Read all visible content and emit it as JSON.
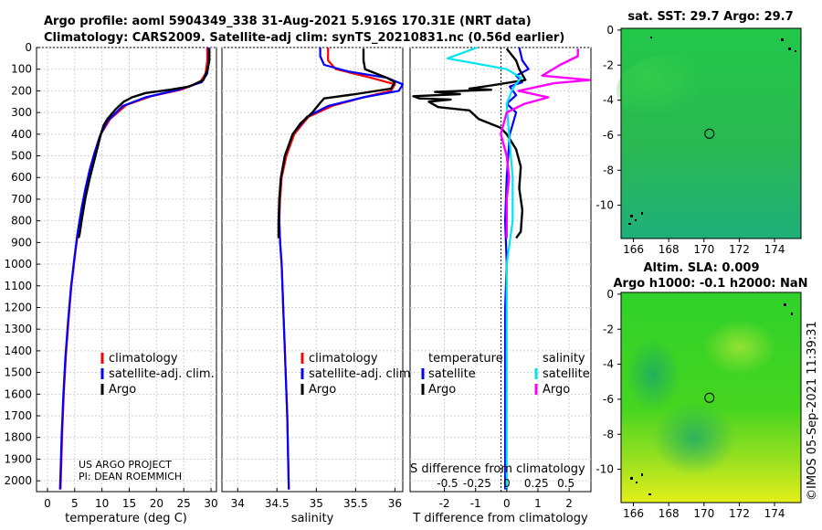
{
  "titles": {
    "line1": "Argo profile: aoml 5904349_338 31-Aug-2021 5.916S 170.31E (NRT data)",
    "line2": "Climatology: CARS2009. Satellite-adj clim: synTS_20210831.nc (0.56d earlier)"
  },
  "credit": {
    "project": "US ARGO PROJECT",
    "pi": "PI: DEAN ROEMMICH",
    "imos": "©IMOS 05-Sep-2021 11:39:31"
  },
  "colors": {
    "argo": "#000000",
    "climatology": "#ff0000",
    "satellite": "#0000ff",
    "sal_satellite": "#00e5ee",
    "sal_argo": "#ff00ff"
  },
  "chart_data": [
    {
      "type": "line",
      "name": "temperature",
      "xlabel": "temperature (deg C)",
      "ylabel": "",
      "xlim": [
        -2,
        31
      ],
      "ylim": [
        2050,
        0
      ],
      "xticks": [
        0,
        5,
        10,
        15,
        20,
        25,
        30
      ],
      "yticks": [
        0,
        100,
        200,
        300,
        400,
        500,
        600,
        700,
        800,
        900,
        1000,
        1100,
        1200,
        1300,
        1400,
        1500,
        1600,
        1700,
        1800,
        1900,
        2000
      ],
      "legend": [
        "climatology",
        "satellite-adj. clim.",
        "Argo"
      ],
      "series": [
        {
          "name": "climatology",
          "points": [
            [
              29.3,
              0
            ],
            [
              29.3,
              60
            ],
            [
              29.0,
              120
            ],
            [
              28.0,
              160
            ],
            [
              24.5,
              195
            ],
            [
              19.0,
              225
            ],
            [
              14.5,
              265
            ],
            [
              11.5,
              330
            ],
            [
              9.8,
              400
            ],
            [
              8.7,
              480
            ],
            [
              7.8,
              560
            ],
            [
              7.0,
              650
            ],
            [
              6.3,
              740
            ],
            [
              5.6,
              850
            ],
            [
              5.0,
              970
            ],
            [
              4.4,
              1100
            ],
            [
              3.9,
              1250
            ],
            [
              3.4,
              1420
            ],
            [
              3.0,
              1600
            ],
            [
              2.7,
              1780
            ],
            [
              2.5,
              1950
            ],
            [
              2.4,
              2040
            ]
          ]
        },
        {
          "name": "satellite-adj. clim.",
          "points": [
            [
              29.6,
              0
            ],
            [
              29.6,
              60
            ],
            [
              29.3,
              120
            ],
            [
              28.3,
              160
            ],
            [
              24.0,
              195
            ],
            [
              18.0,
              230
            ],
            [
              13.8,
              270
            ],
            [
              11.0,
              340
            ],
            [
              9.6,
              410
            ],
            [
              8.6,
              490
            ],
            [
              7.7,
              570
            ],
            [
              6.9,
              660
            ],
            [
              6.2,
              750
            ],
            [
              5.5,
              860
            ],
            [
              4.9,
              980
            ],
            [
              4.3,
              1110
            ],
            [
              3.8,
              1260
            ],
            [
              3.3,
              1430
            ],
            [
              2.9,
              1610
            ],
            [
              2.6,
              1790
            ],
            [
              2.4,
              1960
            ],
            [
              2.3,
              2040
            ]
          ]
        },
        {
          "name": "Argo",
          "points": [
            [
              29.7,
              5
            ],
            [
              29.7,
              60
            ],
            [
              29.4,
              100
            ],
            [
              28.6,
              150
            ],
            [
              26.0,
              180
            ],
            [
              22.5,
              195
            ],
            [
              18.0,
              210
            ],
            [
              15.5,
              230
            ],
            [
              14.0,
              250
            ],
            [
              12.5,
              285
            ],
            [
              11.0,
              330
            ],
            [
              10.3,
              360
            ],
            [
              9.8,
              400
            ],
            [
              9.3,
              450
            ],
            [
              8.6,
              520
            ],
            [
              7.8,
              600
            ],
            [
              7.0,
              690
            ],
            [
              6.4,
              780
            ],
            [
              5.9,
              860
            ],
            [
              5.7,
              880
            ]
          ]
        }
      ]
    },
    {
      "type": "line",
      "name": "salinity",
      "xlabel": "salinity",
      "xlim": [
        33.8,
        36.1
      ],
      "ylim": [
        2050,
        0
      ],
      "xticks": [
        34,
        34.5,
        35,
        35.5,
        36
      ],
      "legend": [
        "climatology",
        "satellite-adj. clim.",
        "Argo"
      ],
      "series": [
        {
          "name": "climatology",
          "points": [
            [
              35.15,
              0
            ],
            [
              35.15,
              60
            ],
            [
              35.25,
              100
            ],
            [
              35.7,
              140
            ],
            [
              36.0,
              170
            ],
            [
              35.95,
              200
            ],
            [
              35.6,
              230
            ],
            [
              35.2,
              270
            ],
            [
              34.9,
              320
            ],
            [
              34.72,
              400
            ],
            [
              34.62,
              500
            ],
            [
              34.56,
              600
            ],
            [
              34.54,
              700
            ],
            [
              34.53,
              800
            ],
            [
              34.54,
              900
            ],
            [
              34.56,
              1000
            ],
            [
              34.58,
              1200
            ],
            [
              34.6,
              1400
            ],
            [
              34.63,
              1700
            ],
            [
              34.65,
              2040
            ]
          ]
        },
        {
          "name": "satellite-adj. clim.",
          "points": [
            [
              35.05,
              0
            ],
            [
              35.05,
              40
            ],
            [
              35.1,
              80
            ],
            [
              35.4,
              110
            ],
            [
              35.9,
              140
            ],
            [
              36.1,
              170
            ],
            [
              36.05,
              200
            ],
            [
              35.6,
              230
            ],
            [
              35.15,
              270
            ],
            [
              34.88,
              320
            ],
            [
              34.7,
              400
            ],
            [
              34.6,
              500
            ],
            [
              34.55,
              600
            ],
            [
              34.53,
              700
            ],
            [
              34.53,
              800
            ],
            [
              34.54,
              900
            ],
            [
              34.56,
              1000
            ],
            [
              34.58,
              1200
            ],
            [
              34.6,
              1400
            ],
            [
              34.63,
              1700
            ],
            [
              34.65,
              2040
            ]
          ]
        },
        {
          "name": "Argo",
          "points": [
            [
              35.6,
              5
            ],
            [
              35.6,
              60
            ],
            [
              35.62,
              100
            ],
            [
              35.9,
              140
            ],
            [
              36.0,
              160
            ],
            [
              35.95,
              190
            ],
            [
              35.5,
              215
            ],
            [
              35.1,
              235
            ],
            [
              35.05,
              255
            ],
            [
              34.95,
              300
            ],
            [
              34.8,
              350
            ],
            [
              34.7,
              400
            ],
            [
              34.6,
              500
            ],
            [
              34.55,
              600
            ],
            [
              34.53,
              700
            ],
            [
              34.52,
              800
            ],
            [
              34.52,
              880
            ]
          ]
        }
      ]
    },
    {
      "type": "line",
      "name": "difference",
      "xlabel": "T difference from climatology",
      "xlabel2": "S difference from climatology",
      "xlim": [
        -3.1,
        2.7
      ],
      "ylim": [
        2050,
        0
      ],
      "xticks": [
        -2,
        -1,
        0,
        1,
        2
      ],
      "xticks2": [
        "-0.5",
        "-0.25",
        "0",
        "0.25",
        "0.5"
      ],
      "legend_title_t": "temperature",
      "legend_title_s": "salinity",
      "legend": [
        "satellite",
        "Argo",
        "satellite",
        "Argo"
      ],
      "series": [
        {
          "name": "T satellite",
          "points": [
            [
              0.4,
              0
            ],
            [
              0.5,
              60
            ],
            [
              0.7,
              100
            ],
            [
              0.3,
              130
            ],
            [
              0.5,
              160
            ],
            [
              0.1,
              180
            ],
            [
              0.3,
              220
            ],
            [
              0.0,
              260
            ],
            [
              0.3,
              300
            ],
            [
              0.1,
              400
            ],
            [
              0.0,
              600
            ],
            [
              -0.05,
              800
            ],
            [
              0.0,
              1000
            ],
            [
              -0.05,
              1200
            ],
            [
              -0.05,
              1400
            ],
            [
              -0.05,
              1700
            ],
            [
              -0.05,
              2040
            ]
          ]
        },
        {
          "name": "T Argo",
          "points": [
            [
              0.0,
              5
            ],
            [
              0.3,
              60
            ],
            [
              0.4,
              100
            ],
            [
              0.6,
              150
            ],
            [
              -0.5,
              175
            ],
            [
              -1.2,
              190
            ],
            [
              -0.5,
              195
            ],
            [
              -2.3,
              205
            ],
            [
              -1.5,
              215
            ],
            [
              -3.0,
              225
            ],
            [
              -2.8,
              235
            ],
            [
              -1.8,
              240
            ],
            [
              -2.5,
              250
            ],
            [
              -2.2,
              275
            ],
            [
              -1.2,
              290
            ],
            [
              -0.9,
              330
            ],
            [
              -0.2,
              370
            ],
            [
              0.0,
              400
            ],
            [
              0.3,
              470
            ],
            [
              0.45,
              550
            ],
            [
              0.4,
              650
            ],
            [
              0.5,
              750
            ],
            [
              0.45,
              850
            ],
            [
              0.3,
              880
            ]
          ]
        },
        {
          "name": "S satellite",
          "points": [
            [
              -0.25,
              0
            ],
            [
              -0.5,
              50
            ],
            [
              0.0,
              100
            ],
            [
              0.12,
              140
            ],
            [
              0.05,
              190
            ],
            [
              0.0,
              260
            ],
            [
              0.02,
              400
            ],
            [
              0.05,
              600
            ],
            [
              0.05,
              800
            ],
            [
              0.0,
              1000
            ],
            [
              0.0,
              1400
            ],
            [
              0.0,
              2040
            ]
          ]
        },
        {
          "name": "S Argo",
          "points": [
            [
              0.6,
              5
            ],
            [
              0.6,
              40
            ],
            [
              0.45,
              80
            ],
            [
              0.3,
              130
            ],
            [
              0.7,
              150
            ],
            [
              0.4,
              165
            ],
            [
              0.1,
              200
            ],
            [
              0.35,
              230
            ],
            [
              0.15,
              260
            ],
            [
              0.0,
              300
            ],
            [
              -0.05,
              400
            ],
            [
              0.0,
              500
            ],
            [
              0.02,
              600
            ],
            [
              0.0,
              700
            ],
            [
              0.0,
              880
            ]
          ]
        }
      ]
    },
    {
      "type": "heatmap",
      "name": "sst_map",
      "title": "sat. SST: 29.7 Argo: 29.7",
      "xticks": [
        "166",
        "168",
        "170",
        "172",
        "174"
      ],
      "yticks": [
        "0",
        "-2",
        "-4",
        "-6",
        "-8",
        "-10"
      ],
      "xlim": [
        165.3,
        175.5
      ],
      "ylim": [
        -11.9,
        0.1
      ],
      "marker": [
        170.31,
        -5.916
      ]
    },
    {
      "type": "heatmap",
      "name": "sla_map",
      "title": "Altim. SLA: 0.009",
      "subtitle": "Argo h1000: -0.1 h2000: NaN",
      "xticks": [
        "166",
        "168",
        "170",
        "172",
        "174"
      ],
      "yticks": [
        "0",
        "-2",
        "-4",
        "-6",
        "-8",
        "-10"
      ],
      "xlim": [
        165.3,
        175.5
      ],
      "ylim": [
        -11.9,
        0.1
      ],
      "marker": [
        170.31,
        -5.916
      ]
    }
  ]
}
